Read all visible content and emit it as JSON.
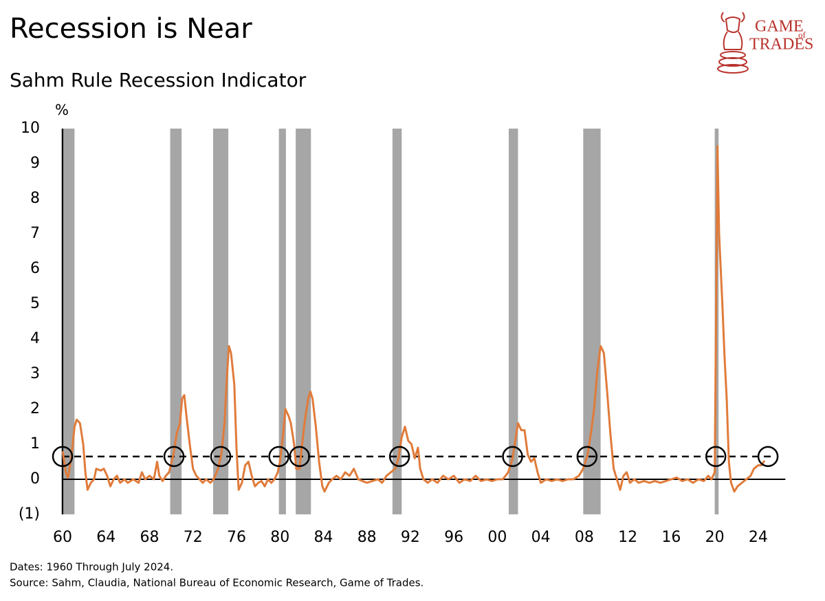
{
  "chart_data": {
    "type": "line",
    "title": "Recession is Near",
    "subtitle": "Sahm Rule Recession Indicator",
    "y_unit": "%",
    "logo": {
      "line1": "GAME",
      "small": "of",
      "line2": "TRADES"
    },
    "notes": [
      "Dates: 1960 Through July 2024.",
      "Source: Sahm, Claudia, National Bureau of Economic Research, Game of Trades."
    ],
    "color": "#e07b3a",
    "shade_color": "#a6a6a6",
    "threshold": 0.65,
    "circled_x": [
      1960.0,
      1970.25,
      1974.55,
      1979.9,
      1981.8,
      1991.0,
      2001.4,
      2008.25,
      2020.1,
      2024.9
    ],
    "shaded_periods": [
      [
        1960.1,
        1961.1
      ],
      [
        1969.9,
        1970.95
      ],
      [
        1973.85,
        1975.25
      ],
      [
        1979.9,
        1980.55
      ],
      [
        1981.45,
        1982.85
      ],
      [
        1990.35,
        1991.2
      ],
      [
        2001.05,
        2001.9
      ],
      [
        2007.9,
        2009.5
      ],
      [
        2020.0,
        2020.35
      ]
    ],
    "xlim": [
      1960,
      2026.5
    ],
    "xticks": [
      {
        "value": 1960,
        "label": "60"
      },
      {
        "value": 1964,
        "label": "64"
      },
      {
        "value": 1968,
        "label": "68"
      },
      {
        "value": 1972,
        "label": "72"
      },
      {
        "value": 1976,
        "label": "76"
      },
      {
        "value": 1980,
        "label": "80"
      },
      {
        "value": 1984,
        "label": "84"
      },
      {
        "value": 1988,
        "label": "88"
      },
      {
        "value": 1992,
        "label": "92"
      },
      {
        "value": 1996,
        "label": "96"
      },
      {
        "value": 2000,
        "label": "00"
      },
      {
        "value": 2004,
        "label": "04"
      },
      {
        "value": 2008,
        "label": "08"
      },
      {
        "value": 2012,
        "label": "12"
      },
      {
        "value": 2016,
        "label": "16"
      },
      {
        "value": 2020,
        "label": "20"
      },
      {
        "value": 2024,
        "label": "24"
      }
    ],
    "ylim": [
      -1,
      10
    ],
    "yticks": [
      {
        "value": -1,
        "label": "(1)"
      },
      0,
      1,
      2,
      3,
      4,
      5,
      6,
      7,
      8,
      9,
      10
    ],
    "x": [
      1960.0,
      1960.3,
      1960.5,
      1960.8,
      1961.1,
      1961.3,
      1961.6,
      1961.9,
      1962.1,
      1962.3,
      1962.6,
      1962.9,
      1963.1,
      1963.5,
      1963.8,
      1964.1,
      1964.4,
      1964.7,
      1965.0,
      1965.3,
      1965.7,
      1966.0,
      1966.5,
      1967.0,
      1967.3,
      1967.6,
      1968.0,
      1968.4,
      1968.7,
      1968.9,
      1969.2,
      1969.5,
      1969.8,
      1970.2,
      1970.5,
      1970.8,
      1971.0,
      1971.2,
      1971.4,
      1971.7,
      1972.0,
      1972.3,
      1972.6,
      1972.9,
      1973.2,
      1973.6,
      1973.9,
      1974.3,
      1974.6,
      1974.9,
      1975.1,
      1975.3,
      1975.5,
      1975.8,
      1976.0,
      1976.2,
      1976.5,
      1976.8,
      1977.1,
      1977.4,
      1977.7,
      1978.0,
      1978.3,
      1978.6,
      1978.9,
      1979.2,
      1979.5,
      1979.8,
      1980.0,
      1980.3,
      1980.5,
      1980.8,
      1981.0,
      1981.3,
      1981.5,
      1981.8,
      1982.0,
      1982.3,
      1982.6,
      1982.8,
      1983.0,
      1983.3,
      1983.6,
      1983.9,
      1984.1,
      1984.5,
      1984.8,
      1985.2,
      1985.6,
      1986.0,
      1986.4,
      1986.8,
      1987.2,
      1987.6,
      1988.0,
      1988.5,
      1989.0,
      1989.4,
      1989.8,
      1990.2,
      1990.6,
      1990.9,
      1991.2,
      1991.5,
      1991.8,
      1992.1,
      1992.4,
      1992.7,
      1992.9,
      1993.2,
      1993.6,
      1994.0,
      1994.5,
      1995.0,
      1995.5,
      1996.0,
      1996.5,
      1997.0,
      1997.5,
      1998.0,
      1998.5,
      1999.0,
      1999.5,
      2000.0,
      2000.5,
      2001.0,
      2001.4,
      2001.7,
      2001.9,
      2002.2,
      2002.5,
      2002.8,
      2003.1,
      2003.4,
      2003.7,
      2004.0,
      2004.5,
      2005.0,
      2005.5,
      2006.0,
      2006.5,
      2007.0,
      2007.5,
      2007.9,
      2008.3,
      2008.6,
      2008.9,
      2009.2,
      2009.5,
      2009.8,
      2010.1,
      2010.4,
      2010.7,
      2011.0,
      2011.3,
      2011.6,
      2011.9,
      2012.2,
      2012.6,
      2013.0,
      2013.5,
      2014.0,
      2014.5,
      2015.0,
      2015.5,
      2016.0,
      2016.5,
      2017.0,
      2017.5,
      2018.0,
      2018.5,
      2019.0,
      2019.4,
      2019.7,
      2020.0,
      2020.25,
      2020.4,
      2020.7,
      2020.9,
      2021.1,
      2021.3,
      2021.5,
      2021.8,
      2022.1,
      2022.5,
      2022.9,
      2023.3,
      2023.6,
      2024.0,
      2024.3,
      2024.58
    ],
    "values": [
      0.8,
      0.2,
      0.05,
      0.6,
      1.5,
      1.7,
      1.6,
      1.0,
      0.2,
      -0.3,
      -0.1,
      0.0,
      0.3,
      0.25,
      0.3,
      0.1,
      -0.2,
      0.0,
      0.1,
      -0.1,
      0.0,
      -0.1,
      0.0,
      -0.1,
      0.2,
      0.0,
      0.1,
      0.0,
      0.5,
      0.1,
      -0.05,
      0.1,
      0.2,
      0.7,
      1.3,
      1.6,
      2.3,
      2.4,
      1.8,
      1.0,
      0.3,
      0.1,
      0.0,
      -0.1,
      0.0,
      -0.1,
      0.0,
      0.3,
      0.7,
      1.6,
      2.8,
      3.8,
      3.6,
      2.7,
      0.9,
      -0.3,
      -0.1,
      0.4,
      0.5,
      0.1,
      -0.2,
      -0.1,
      -0.05,
      -0.2,
      0.0,
      -0.1,
      0.0,
      0.2,
      0.5,
      1.3,
      2.0,
      1.8,
      1.6,
      1.0,
      0.3,
      0.3,
      0.9,
      1.7,
      2.3,
      2.5,
      2.3,
      1.5,
      0.5,
      -0.2,
      -0.35,
      -0.1,
      0.0,
      0.1,
      0.0,
      0.2,
      0.1,
      0.3,
      0.0,
      -0.05,
      -0.1,
      -0.05,
      0.0,
      -0.1,
      0.1,
      0.2,
      0.3,
      0.6,
      1.2,
      1.5,
      1.1,
      1.0,
      0.6,
      0.9,
      0.3,
      0.0,
      -0.1,
      0.0,
      -0.1,
      0.1,
      0.0,
      0.1,
      -0.1,
      0.0,
      -0.05,
      0.1,
      -0.05,
      0.0,
      -0.05,
      0.0,
      0.0,
      0.2,
      0.6,
      1.2,
      1.6,
      1.4,
      1.4,
      0.7,
      0.5,
      0.6,
      0.2,
      -0.1,
      0.0,
      -0.05,
      0.0,
      -0.05,
      0.0,
      0.0,
      0.1,
      0.3,
      0.7,
      1.3,
      2.0,
      3.1,
      3.8,
      3.6,
      2.5,
      1.3,
      0.3,
      0.0,
      -0.3,
      0.1,
      0.2,
      -0.1,
      0.0,
      -0.1,
      -0.05,
      -0.1,
      -0.05,
      -0.1,
      -0.05,
      0.0,
      0.05,
      -0.05,
      0.0,
      -0.1,
      0.0,
      -0.05,
      0.1,
      0.0,
      0.2,
      9.5,
      7.0,
      5.0,
      3.5,
      2.3,
      0.5,
      -0.1,
      -0.35,
      -0.2,
      -0.1,
      0.0,
      0.1,
      0.3,
      0.4,
      0.4,
      0.53
    ]
  }
}
